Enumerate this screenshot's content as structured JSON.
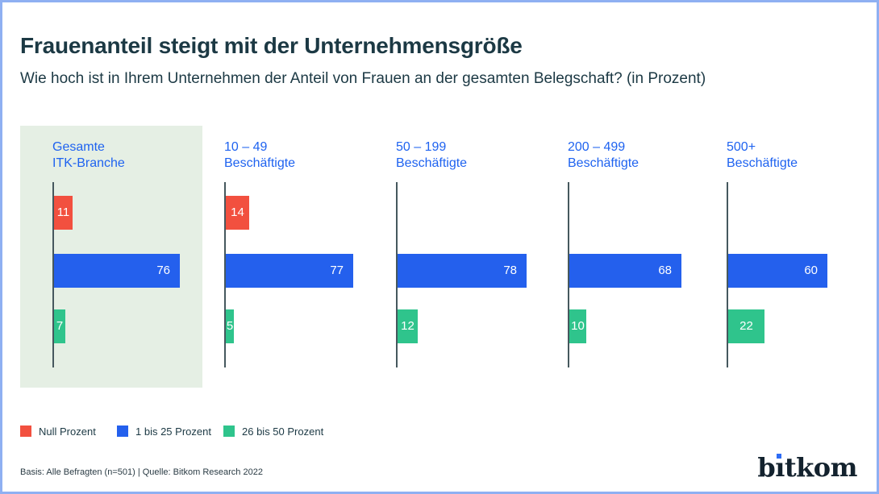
{
  "header": {
    "title": "Frauenanteil steigt mit der Unternehmensgröße",
    "subtitle": "Wie hoch ist in Ihrem Unternehmen der Anteil von Frauen an der gesamten Belegschaft? (in Prozent)"
  },
  "chart_data": {
    "type": "bar",
    "orientation": "horizontal",
    "unit": "Prozent",
    "title": "Frauenanteil steigt mit der Unternehmensgröße",
    "subtitle": "Wie hoch ist in Ihrem Unternehmen der Anteil von Frauen an der gesamten Belegschaft? (in Prozent)",
    "categories": [
      "Gesamte ITK-Branche",
      "10 – 49 Beschäftigte",
      "50 – 199 Beschäftigte",
      "200 – 499 Beschäftigte",
      "500+ Beschäftigte"
    ],
    "panel_labels": [
      [
        "Gesamte",
        "ITK-Branche"
      ],
      [
        "10 – 49",
        "Beschäftigte"
      ],
      [
        "50 – 199",
        "Beschäftigte"
      ],
      [
        "200 – 499",
        "Beschäftigte"
      ],
      [
        "500+",
        "Beschäftigte"
      ]
    ],
    "series": [
      {
        "name": "Null Prozent",
        "key": "null-prozent",
        "color": "#f2503f",
        "values": [
          11,
          14,
          null,
          null,
          null
        ]
      },
      {
        "name": "1 bis 25 Prozent",
        "key": "1-bis-25-prozent",
        "color": "#2460ed",
        "values": [
          76,
          77,
          78,
          68,
          60
        ]
      },
      {
        "name": "26 bis 50 Prozent",
        "key": "26-bis-50-prozent",
        "color": "#2fc48c",
        "values": [
          7,
          5,
          12,
          10,
          22
        ]
      }
    ],
    "xlim": [
      0,
      100
    ],
    "grid": false,
    "legend_position": "bottom-left",
    "highlighted_category": "Gesamte ITK-Branche",
    "highlight_color": "#e5efe4",
    "label_color": "#1f63f0",
    "axis_color": "#46585e"
  },
  "legend": {
    "items": [
      {
        "label": "Null Prozent",
        "color": "#f2503f"
      },
      {
        "label": "1 bis 25 Prozent",
        "color": "#2460ed"
      },
      {
        "label": "26 bis 50 Prozent",
        "color": "#2fc48c"
      }
    ]
  },
  "footer": {
    "text": "Basis: Alle Befragten (n=501) | Quelle: Bitkom Research 2022"
  },
  "logo": {
    "text": "bitkom",
    "color": "#13222e",
    "dot_color": "#2e6cf5"
  }
}
